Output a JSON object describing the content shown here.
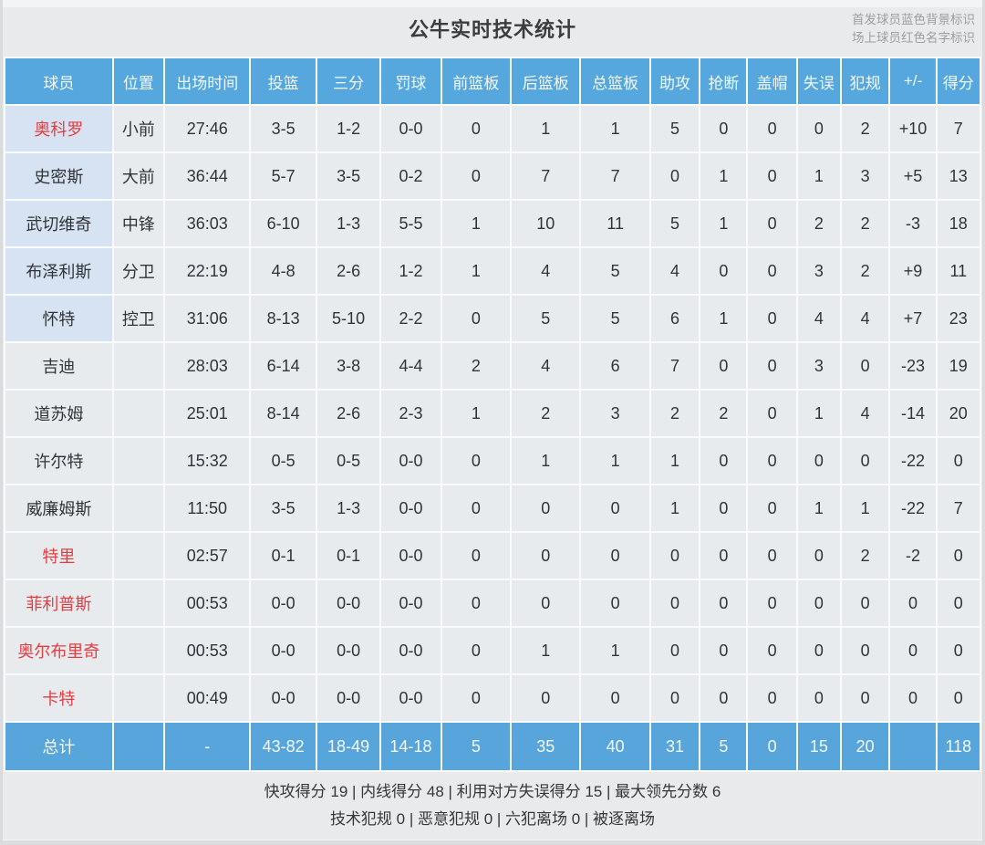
{
  "header": {
    "title": "公牛实时技术统计",
    "legend_line1": "首发球员蓝色背景标识",
    "legend_line2": "场上球员红色名字标识"
  },
  "colors": {
    "header_blue": "#55a7dd",
    "total_row_blue": "#57a5db",
    "starter_name_bg": "#d7e3f2",
    "cell_bg": "#e8ebee",
    "on_court_red": "#e23d41",
    "text_dark": "#303438"
  },
  "table": {
    "columns": [
      "球员",
      "位置",
      "出场时间",
      "投篮",
      "三分",
      "罚球",
      "前篮板",
      "后篮板",
      "总篮板",
      "助攻",
      "抢断",
      "盖帽",
      "失误",
      "犯规",
      "+/-",
      "得分"
    ],
    "stat_keys": [
      "time",
      "fg",
      "3p",
      "ft",
      "oreb",
      "dreb",
      "treb",
      "ast",
      "stl",
      "blk",
      "to",
      "pf",
      "plus-minus",
      "pts"
    ],
    "players": [
      {
        "name": "奥科罗",
        "starter": true,
        "on_court": true,
        "position": "小前",
        "stats": [
          "27:46",
          "3-5",
          "1-2",
          "0-0",
          "0",
          "1",
          "1",
          "5",
          "0",
          "0",
          "0",
          "2",
          "+10",
          "7"
        ]
      },
      {
        "name": "史密斯",
        "starter": true,
        "on_court": false,
        "position": "大前",
        "stats": [
          "36:44",
          "5-7",
          "3-5",
          "0-2",
          "0",
          "7",
          "7",
          "0",
          "1",
          "0",
          "1",
          "3",
          "+5",
          "13"
        ]
      },
      {
        "name": "武切维奇",
        "starter": true,
        "on_court": false,
        "position": "中锋",
        "stats": [
          "36:03",
          "6-10",
          "1-3",
          "5-5",
          "1",
          "10",
          "11",
          "5",
          "1",
          "0",
          "2",
          "2",
          "-3",
          "18"
        ]
      },
      {
        "name": "布泽利斯",
        "starter": true,
        "on_court": false,
        "position": "分卫",
        "stats": [
          "22:19",
          "4-8",
          "2-6",
          "1-2",
          "1",
          "4",
          "5",
          "4",
          "0",
          "0",
          "3",
          "2",
          "+9",
          "11"
        ]
      },
      {
        "name": "怀特",
        "starter": true,
        "on_court": false,
        "position": "控卫",
        "stats": [
          "31:06",
          "8-13",
          "5-10",
          "2-2",
          "0",
          "5",
          "5",
          "6",
          "1",
          "0",
          "4",
          "4",
          "+7",
          "23"
        ]
      },
      {
        "name": "吉迪",
        "starter": false,
        "on_court": false,
        "position": "",
        "stats": [
          "28:03",
          "6-14",
          "3-8",
          "4-4",
          "2",
          "4",
          "6",
          "7",
          "0",
          "0",
          "3",
          "0",
          "-23",
          "19"
        ]
      },
      {
        "name": "道苏姆",
        "starter": false,
        "on_court": false,
        "position": "",
        "stats": [
          "25:01",
          "8-14",
          "2-6",
          "2-3",
          "1",
          "2",
          "3",
          "2",
          "2",
          "0",
          "1",
          "4",
          "-14",
          "20"
        ]
      },
      {
        "name": "许尔特",
        "starter": false,
        "on_court": false,
        "position": "",
        "stats": [
          "15:32",
          "0-5",
          "0-5",
          "0-0",
          "0",
          "1",
          "1",
          "1",
          "0",
          "0",
          "0",
          "0",
          "-22",
          "0"
        ]
      },
      {
        "name": "威廉姆斯",
        "starter": false,
        "on_court": false,
        "position": "",
        "stats": [
          "11:50",
          "3-5",
          "1-3",
          "0-0",
          "0",
          "0",
          "0",
          "1",
          "0",
          "0",
          "1",
          "1",
          "-22",
          "7"
        ]
      },
      {
        "name": "特里",
        "starter": false,
        "on_court": true,
        "position": "",
        "stats": [
          "02:57",
          "0-1",
          "0-1",
          "0-0",
          "0",
          "0",
          "0",
          "0",
          "0",
          "0",
          "0",
          "2",
          "-2",
          "0"
        ]
      },
      {
        "name": "菲利普斯",
        "starter": false,
        "on_court": true,
        "position": "",
        "stats": [
          "00:53",
          "0-0",
          "0-0",
          "0-0",
          "0",
          "0",
          "0",
          "0",
          "0",
          "0",
          "0",
          "0",
          "0",
          "0"
        ]
      },
      {
        "name": "奥尔布里奇",
        "starter": false,
        "on_court": true,
        "position": "",
        "stats": [
          "00:53",
          "0-0",
          "0-0",
          "0-0",
          "0",
          "1",
          "1",
          "0",
          "0",
          "0",
          "0",
          "0",
          "0",
          "0"
        ]
      },
      {
        "name": "卡特",
        "starter": false,
        "on_court": true,
        "position": "",
        "stats": [
          "00:49",
          "0-0",
          "0-0",
          "0-0",
          "0",
          "0",
          "0",
          "0",
          "0",
          "0",
          "0",
          "0",
          "0",
          "0"
        ]
      }
    ],
    "total": {
      "label": "总计",
      "position": "",
      "stats": [
        "-",
        "43-82",
        "18-49",
        "14-18",
        "5",
        "35",
        "40",
        "31",
        "5",
        "0",
        "15",
        "20",
        "",
        "118"
      ]
    }
  },
  "footer": {
    "line1": "快攻得分 19 | 内线得分 48 | 利用对方失误得分 15 | 最大领先分数 6",
    "line2": "技术犯规 0 | 恶意犯规 0 | 六犯离场 0 | 被逐离场"
  }
}
